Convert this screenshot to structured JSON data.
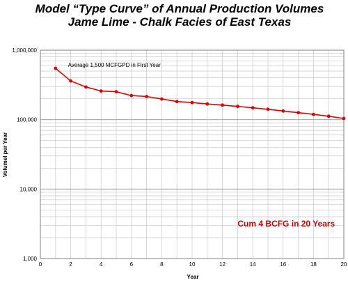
{
  "chart_data": {
    "type": "line",
    "title": "Model “Type Curve” of Annual Production Volumes",
    "subtitle": "Jame Lime - Chalk Facies of East Texas",
    "xlabel": "Year",
    "ylabel": "Volumel per Year",
    "xlim": [
      0,
      20
    ],
    "ylim": [
      1000,
      1000000
    ],
    "y_scale": "log",
    "x_ticks": [
      "0",
      "2",
      "4",
      "6",
      "8",
      "10",
      "12",
      "14",
      "16",
      "18",
      "20"
    ],
    "y_ticks": [
      "1,000",
      "10,000",
      "100,000",
      "1,000,000"
    ],
    "grid": true,
    "series": [
      {
        "color": "#dd0000",
        "x": [
          1,
          2,
          3,
          4,
          5,
          6,
          7,
          8,
          9,
          10,
          11,
          12,
          13,
          14,
          15,
          16,
          17,
          18,
          19,
          20
        ],
        "y": [
          548000,
          360000,
          295000,
          258000,
          252000,
          222000,
          215000,
          198000,
          182000,
          176000,
          168000,
          162000,
          155000,
          148000,
          141000,
          133000,
          126000,
          119000,
          112000,
          104000
        ]
      }
    ],
    "annotations": [
      {
        "text": "Average 1,500 MCFGPD in First Year",
        "x": 2,
        "y": 548000
      },
      {
        "text": "Cum 4 BCFG in 20 Years",
        "x": 13,
        "y": 2900,
        "color": "#d00000"
      }
    ]
  }
}
